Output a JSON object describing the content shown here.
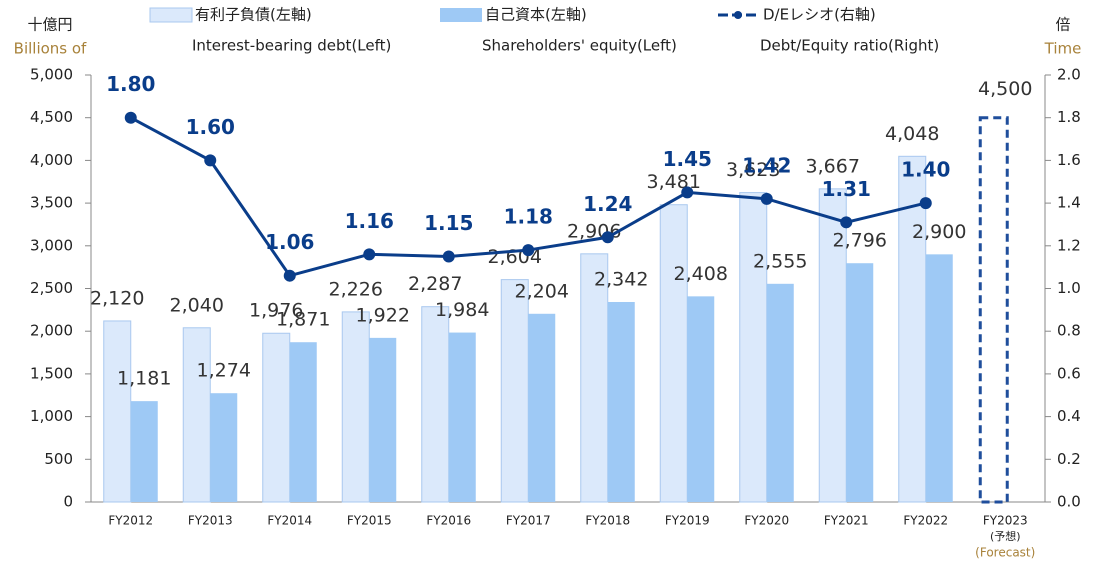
{
  "chart_data": {
    "type": "bar_line",
    "y_axis_label": "十億円",
    "y_axis_label_en": "Billions of",
    "y2_axis_label": "倍",
    "y2_axis_label_en": "Time",
    "categories": [
      "FY2012",
      "FY2013",
      "FY2014",
      "FY2015",
      "FY2016",
      "FY2017",
      "FY2018",
      "FY2019",
      "FY2020",
      "FY2021",
      "FY2022",
      "FY2023"
    ],
    "forecast_label": [
      "(予想)",
      "(Forecast)"
    ],
    "series": [
      {
        "name": "有利子負債(左軸)",
        "name_en": "Interest-bearing debt(Left)",
        "color": "#dbe9fb",
        "edge": "#a9c8ef",
        "forecast_style": "dashed",
        "forecast_color": "#1f4e9c",
        "values": [
          2120,
          2040,
          1976,
          2226,
          2287,
          2604,
          2906,
          3481,
          3623,
          3667,
          4048,
          4500
        ],
        "value_labels": [
          "2,120",
          "2,040",
          "1,976",
          "2,226",
          "2,287",
          "2,604",
          "2,906",
          "3,481",
          "3,623",
          "3,667",
          "4,048",
          "4,500"
        ]
      },
      {
        "name": "自己資本(左軸)",
        "name_en": "Shareholders' equity(Left)",
        "color": "#9ec9f5",
        "values": [
          1181,
          1274,
          1871,
          1922,
          1984,
          2204,
          2342,
          2408,
          2555,
          2796,
          2900,
          null
        ],
        "value_labels": [
          "1,181",
          "1,274",
          "1,871",
          "1,922",
          "1,984",
          "2,204",
          "2,342",
          "2,408",
          "2,555",
          "2,796",
          "2,900",
          null
        ]
      },
      {
        "name": "D/Eレシオ(右軸)",
        "name_en": "Debt/Equity ratio(Right)",
        "color": "#0a3d8a",
        "axis": "y2",
        "values": [
          1.8,
          1.6,
          1.06,
          1.16,
          1.15,
          1.18,
          1.24,
          1.45,
          1.42,
          1.31,
          1.4,
          null
        ],
        "value_labels": [
          "1.80",
          "1.60",
          "1.06",
          "1.16",
          "1.15",
          "1.18",
          "1.24",
          "1.45",
          "1.42",
          "1.31",
          "1.40",
          null
        ]
      }
    ],
    "ylim": [
      0,
      5000
    ],
    "yticks": [
      0,
      500,
      {
        "value": 1000,
        "label": "1,000"
      },
      {
        "value": 1500,
        "label": "1,500"
      },
      {
        "value": 2000,
        "label": "2,000"
      },
      {
        "value": 2500,
        "label": "2,500"
      },
      {
        "value": 3000,
        "label": "3,000"
      },
      {
        "value": 3500,
        "label": "3,500"
      },
      {
        "value": 4000,
        "label": "4,000"
      },
      {
        "value": 4500,
        "label": "4,500"
      },
      {
        "value": 5000,
        "label": "5,000"
      }
    ],
    "y2lim": [
      0,
      2
    ],
    "y2ticks": [
      {
        "value": 0,
        "label": "0.0"
      },
      {
        "value": 0.2,
        "label": "0.2"
      },
      {
        "value": 0.4,
        "label": "0.4"
      },
      {
        "value": 0.6,
        "label": "0.6"
      },
      {
        "value": 0.8,
        "label": "0.8"
      },
      {
        "value": 1,
        "label": "1.0"
      },
      {
        "value": 1.2,
        "label": "1.2"
      },
      {
        "value": 1.4,
        "label": "1.4"
      },
      {
        "value": 1.6,
        "label": "1.6"
      },
      {
        "value": 1.8,
        "label": "1.8"
      },
      {
        "value": 2,
        "label": "2.0"
      }
    ]
  }
}
